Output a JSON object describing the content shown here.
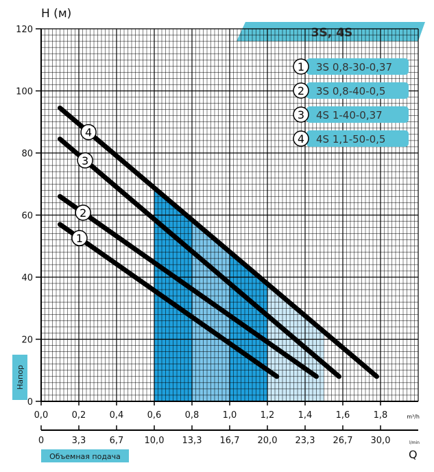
{
  "chart_data": {
    "type": "line",
    "title": "3S, 4S",
    "ylabel": "H (м)",
    "xlabel_unit_top": "m³/h",
    "xlabel_unit_bottom": "l/min",
    "xlabel_bottom_letter": "Q",
    "side_label": "Напор",
    "bottom_badge": "Объемная подача",
    "ylim": [
      0,
      120
    ],
    "xlim": [
      0,
      2.0
    ],
    "y_ticks": [
      "0",
      "20",
      "40",
      "60",
      "80",
      "100",
      "120"
    ],
    "x_ticks_m3h": [
      "0,0",
      "0,2",
      "0,4",
      "0,6",
      "0,8",
      "1,0",
      "1,2",
      "1,4",
      "1,6",
      "1,8"
    ],
    "x_ticks_lmin": [
      "0",
      "3,3",
      "6,7",
      "10,0",
      "13,3",
      "16,7",
      "20,0",
      "23,3",
      "26,7",
      "30,0"
    ],
    "grid": true,
    "legend": "top-right",
    "series": [
      {
        "id": "1",
        "name": "3S 0,8-30-0,37",
        "x": [
          0.1,
          1.25
        ],
        "y": [
          57,
          8
        ]
      },
      {
        "id": "2",
        "name": "3S 0,8-40-0,5",
        "x": [
          0.1,
          1.46
        ],
        "y": [
          66,
          8
        ]
      },
      {
        "id": "3",
        "name": "4S 1-40-0,37",
        "x": [
          0.1,
          1.58
        ],
        "y": [
          84.5,
          8
        ]
      },
      {
        "id": "4",
        "name": "4S 1,1-50-0,5",
        "x": [
          0.1,
          1.78
        ],
        "y": [
          94.5,
          8
        ]
      }
    ],
    "colors": {
      "line": "#000000",
      "banner": "#5bc3d8",
      "legend_badge": "#5bc3d8",
      "zone_light": "#cce9f7",
      "zone_mid": "#7cc5ea",
      "zone_dark": "#1fa0dd"
    }
  }
}
